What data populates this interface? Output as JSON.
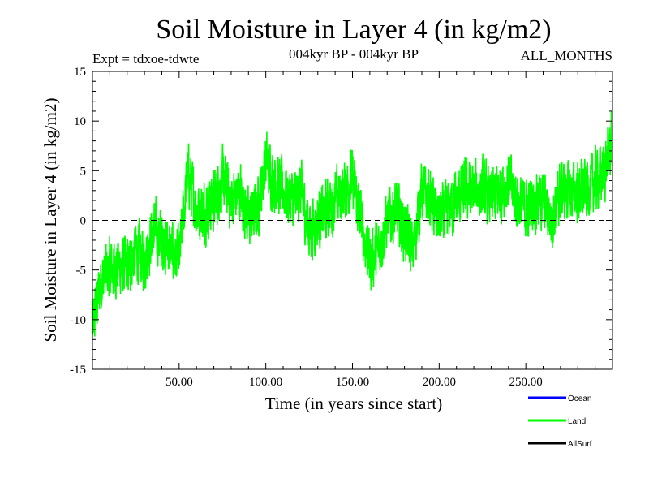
{
  "chart_data": {
    "type": "line",
    "title": "Soil Moisture in Layer 4 (in kg/m2)",
    "subtitle_left": "Expt = tdxoe-tdwte",
    "subtitle_center": "004kyr BP - 004kyr BP",
    "subtitle_right": "ALL_MONTHS",
    "xlabel": "Time (in years since start)",
    "ylabel": "Soil Moisture in Layer 4 (in kg/m2)",
    "xlim": [
      0,
      300
    ],
    "ylim": [
      -15,
      15
    ],
    "x_ticks": [
      50,
      100,
      150,
      200,
      250
    ],
    "x_tick_labels": [
      "50.00",
      "100.00",
      "150.00",
      "200.00",
      "250.00"
    ],
    "y_ticks": [
      -15,
      -10,
      -5,
      0,
      5,
      10,
      15
    ],
    "y_tick_labels": [
      "-15",
      "-10",
      "-5",
      "0",
      "5",
      "10",
      "15"
    ],
    "zero_line": true,
    "legend": {
      "position": "bottom-right",
      "entries": [
        {
          "label": "Ocean",
          "color": "#0000ff"
        },
        {
          "label": "Land",
          "color": "#00ff00"
        },
        {
          "label": "AllSurf",
          "color": "#000000"
        }
      ]
    },
    "series": [
      {
        "name": "Land",
        "color": "#00ff00",
        "x": [
          0,
          5,
          10,
          15,
          20,
          25,
          30,
          35,
          40,
          45,
          50,
          55,
          60,
          65,
          70,
          75,
          80,
          85,
          90,
          95,
          100,
          105,
          110,
          115,
          120,
          125,
          130,
          135,
          140,
          145,
          150,
          155,
          160,
          165,
          170,
          175,
          180,
          185,
          190,
          195,
          200,
          205,
          210,
          215,
          220,
          225,
          230,
          235,
          240,
          245,
          250,
          255,
          260,
          265,
          270,
          275,
          280,
          285,
          290,
          295,
          300
        ],
        "y": [
          -11,
          -6,
          -5,
          -4.5,
          -5,
          -3,
          -4,
          -1,
          -2,
          -3,
          -4,
          5,
          1,
          1,
          2,
          4,
          2,
          3,
          0,
          1,
          6,
          4,
          3,
          2,
          3,
          -1,
          0,
          1,
          2,
          3,
          4,
          0,
          -4,
          -3,
          0,
          1,
          -1,
          -3,
          3,
          2,
          0,
          1,
          2,
          3,
          3,
          3,
          2,
          3,
          4,
          2,
          1,
          2,
          2,
          0,
          3,
          3,
          3,
          3,
          4,
          5,
          8
        ],
        "amplitude": 4.5
      }
    ]
  }
}
